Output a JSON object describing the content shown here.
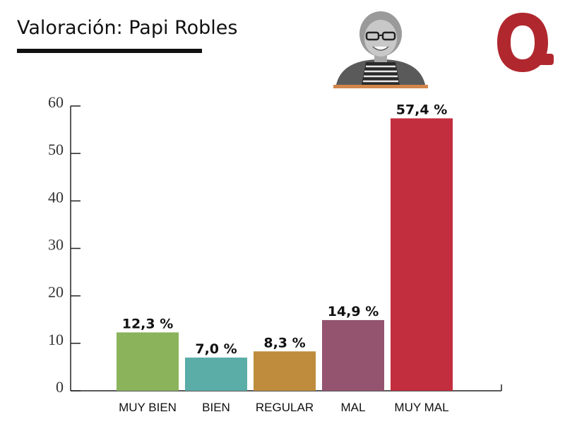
{
  "header": {
    "title": "Valoración: Papi Robles"
  },
  "colors": {
    "title_underline": "#111111",
    "logo": "#b0282e",
    "portrait_base": "#d2864a"
  },
  "icons": {
    "portrait": "person-portrait-icon",
    "logo": "q-logo-icon"
  },
  "chart_data": {
    "type": "bar",
    "title": "",
    "xlabel": "",
    "ylabel": "",
    "categories": [
      "MUY BIEN",
      "BIEN",
      "REGULAR",
      "MAL",
      "MUY MAL"
    ],
    "values": [
      12.3,
      7.0,
      8.3,
      14.9,
      57.4
    ],
    "data_labels": [
      "12,3 %",
      "7,0 %",
      "8,3 %",
      "14,9 %",
      "57,4 %"
    ],
    "colors": [
      "#8ab35c",
      "#5bada8",
      "#be8c3c",
      "#945470",
      "#c22e3e"
    ],
    "ylim": [
      0,
      60
    ],
    "yticks": [
      0,
      10,
      20,
      30,
      40,
      50,
      60
    ],
    "ytick_labels": [
      "0",
      "10",
      "20",
      "30",
      "40",
      "50",
      "60"
    ],
    "grid": false,
    "legend": "none"
  }
}
